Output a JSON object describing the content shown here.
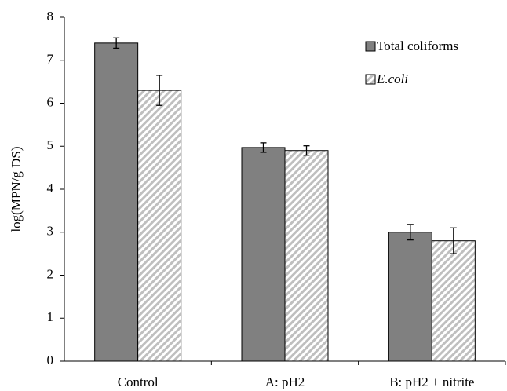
{
  "chart_data": {
    "type": "bar",
    "y_label": "log(MPN/g DS)",
    "categories": [
      "Control",
      "A: pH2",
      "B: pH2 + nitrite"
    ],
    "series": [
      {
        "name": "Total coliforms",
        "color": "#808080",
        "hatch": false,
        "italic": false,
        "values": [
          7.4,
          4.97,
          3.0
        ],
        "errors": [
          0.12,
          0.11,
          0.18
        ]
      },
      {
        "name": "E.coli",
        "color": "#bfbfbf",
        "hatch": true,
        "italic": true,
        "values": [
          6.3,
          4.9,
          2.8
        ],
        "errors": [
          0.35,
          0.11,
          0.3
        ]
      }
    ],
    "ylim": [
      0,
      8
    ],
    "yticks": [
      0,
      1,
      2,
      3,
      4,
      5,
      6,
      7,
      8
    ],
    "legend": "top-right",
    "grid": false
  }
}
